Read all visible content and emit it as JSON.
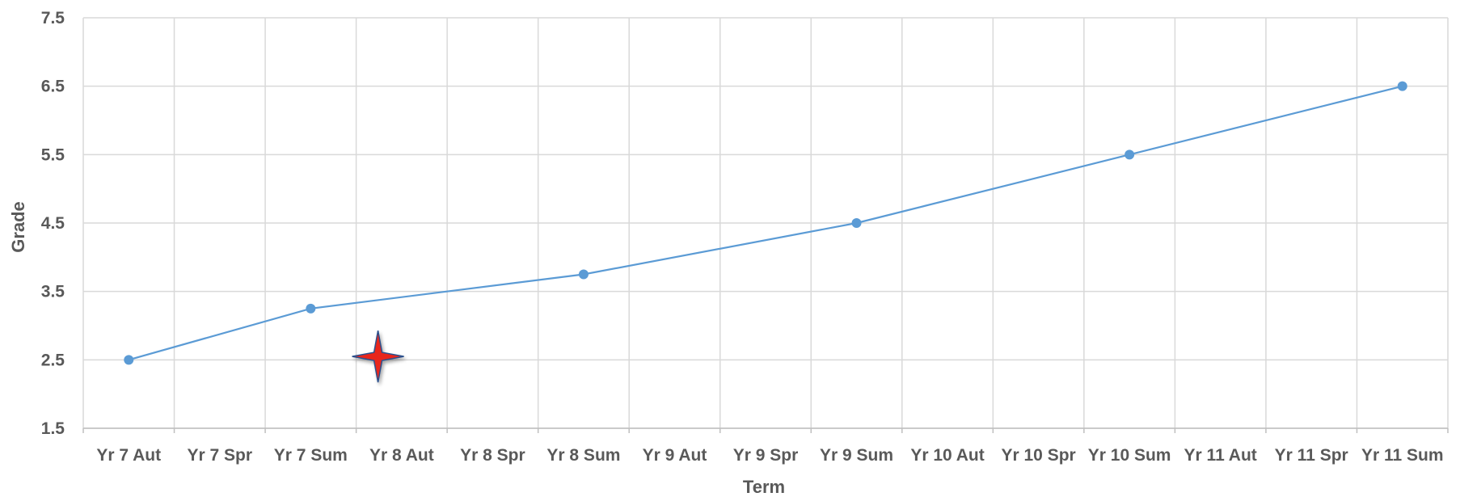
{
  "chart_data": {
    "type": "line",
    "title": "",
    "xlabel": "Term",
    "ylabel": "Grade",
    "categories": [
      "Yr 7 Aut",
      "Yr 7 Spr",
      "Yr 7 Sum",
      "Yr 8 Aut",
      "Yr 8 Spr",
      "Yr 8 Sum",
      "Yr 9 Aut",
      "Yr 9 Spr",
      "Yr 9 Sum",
      "Yr 10 Aut",
      "Yr 10 Spr",
      "Yr 10 Sum",
      "Yr 11 Aut",
      "Yr 11 Spr",
      "Yr 11 Sum"
    ],
    "yticks": [
      "1.5",
      "2.5",
      "3.5",
      "4.5",
      "5.5",
      "6.5",
      "7.5"
    ],
    "ylim": [
      1.5,
      7.5
    ],
    "grid": true,
    "series": [
      {
        "color": "#5b9bd5",
        "points": [
          {
            "x": "Yr 7 Aut",
            "y": 2.5
          },
          {
            "x": "Yr 7 Sum",
            "y": 3.25
          },
          {
            "x": "Yr 8 Sum",
            "y": 3.75
          },
          {
            "x": "Yr 9 Sum",
            "y": 4.5
          },
          {
            "x": "Yr 10 Sum",
            "y": 5.5
          },
          {
            "x": "Yr 11 Sum",
            "y": 6.5
          }
        ]
      }
    ],
    "annotation": {
      "icon": "four-point-star-icon",
      "x": "Yr 8 Aut",
      "y": 2.55,
      "color": "#e8281e"
    }
  }
}
